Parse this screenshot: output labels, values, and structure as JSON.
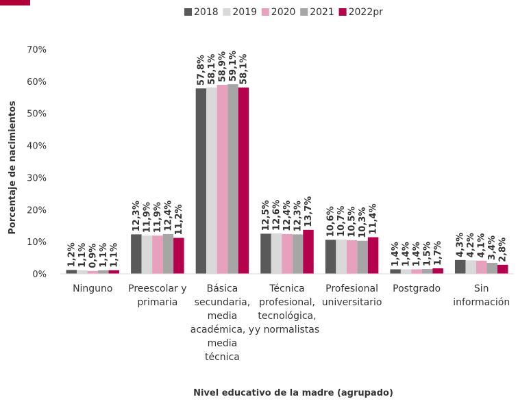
{
  "colors": {
    "accent": "#B0003A",
    "axis_text": "#333333",
    "grid": "#d9d9d9"
  },
  "chart_data": {
    "type": "bar",
    "title": "",
    "xlabel": "Nivel educativo de la madre (agrupado)",
    "ylabel": "Porcentaje de nacimientos",
    "ylim": [
      0,
      70
    ],
    "yticks": [
      0,
      10,
      20,
      30,
      40,
      50,
      60,
      70
    ],
    "ytick_labels": [
      "0%",
      "10%",
      "20%",
      "30%",
      "40%",
      "50%",
      "60%",
      "70%"
    ],
    "grid": false,
    "legend_position": "top",
    "categories": [
      [
        "Ninguno"
      ],
      [
        "Preescolar y",
        "primaria"
      ],
      [
        "Básica",
        "secundaria,",
        "media",
        "académica, y",
        "media",
        "técnica"
      ],
      [
        "Técnica",
        "profesional,",
        "tecnológica,",
        "y normalistas"
      ],
      [
        "Profesional",
        "universitario"
      ],
      [
        "Postgrado"
      ],
      [
        "Sin",
        "información"
      ]
    ],
    "series": [
      {
        "name": "2018",
        "color": "#595959",
        "values": [
          1.2,
          12.3,
          57.8,
          12.5,
          10.6,
          1.4,
          4.3
        ],
        "labels": [
          "1,2%",
          "12,3%",
          "57,8%",
          "12,5%",
          "10,6%",
          "1,4%",
          "4,3%"
        ]
      },
      {
        "name": "2019",
        "color": "#d9d9d9",
        "values": [
          1.1,
          11.9,
          58.1,
          12.6,
          10.7,
          1.4,
          4.2
        ],
        "labels": [
          "1,1%",
          "11,9%",
          "58,1%",
          "12,6%",
          "10,7%",
          "1,4%",
          "4,2%"
        ]
      },
      {
        "name": "2020",
        "color": "#e8a0bf",
        "values": [
          0.9,
          11.9,
          58.9,
          12.4,
          10.5,
          1.4,
          4.1
        ],
        "labels": [
          "0,9%",
          "11,9%",
          "58,9%",
          "12,4%",
          "10,5%",
          "1,4%",
          "4,1%"
        ]
      },
      {
        "name": "2021",
        "color": "#a6a6a6",
        "values": [
          1.1,
          12.4,
          59.1,
          12.3,
          10.3,
          1.5,
          3.4
        ],
        "labels": [
          "1,1%",
          "12,4%",
          "59,1%",
          "12,3%",
          "10,3%",
          "1,5%",
          "3,4%"
        ]
      },
      {
        "name": "2022pr",
        "color": "#b5004e",
        "values": [
          1.1,
          11.2,
          58.1,
          13.7,
          11.4,
          1.7,
          2.8
        ],
        "labels": [
          "1,1%",
          "11,2%",
          "58,1%",
          "13,7%",
          "11,4%",
          "1,7%",
          "2,8%"
        ]
      }
    ]
  }
}
